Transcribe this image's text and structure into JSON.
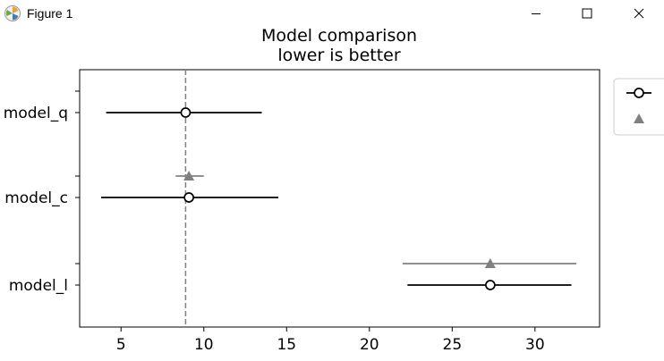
{
  "window": {
    "title": "Figure 1",
    "controls": {
      "minimize": "minimize-icon",
      "maximize": "maximize-icon",
      "close": "close-icon"
    }
  },
  "chart_data": {
    "type": "scatter",
    "title": "Model comparison",
    "subtitle": "lower is better",
    "xlabel": "",
    "ylabel": "",
    "xlim": [
      2.5,
      33.9
    ],
    "xticks": [
      5,
      10,
      15,
      20,
      25,
      30
    ],
    "categories": [
      "model_q",
      "model_c",
      "model_l"
    ],
    "reference_line": {
      "x": 8.9,
      "style": "dashed",
      "color": "#808080"
    },
    "grid": false,
    "legend": {
      "placement": "top-right",
      "entries": [
        {
          "marker": "circle"
        },
        {
          "marker": "triangle"
        }
      ]
    },
    "series": [
      {
        "marker": "circle",
        "color": "#000000",
        "points": [
          {
            "category": "model_q",
            "value": 8.9,
            "err_low": 4.1,
            "err_high": 13.5
          },
          {
            "category": "model_c",
            "value": 9.1,
            "err_low": 3.8,
            "err_high": 14.5
          },
          {
            "category": "model_l",
            "value": 27.3,
            "err_low": 22.3,
            "err_high": 32.2
          }
        ]
      },
      {
        "marker": "triangle",
        "color": "#808080",
        "points": [
          {
            "category": "model_c",
            "value": 9.1,
            "err_low": 8.3,
            "err_high": 10.0
          },
          {
            "category": "model_l",
            "value": 27.3,
            "err_low": 22.0,
            "err_high": 32.5
          }
        ]
      }
    ]
  }
}
